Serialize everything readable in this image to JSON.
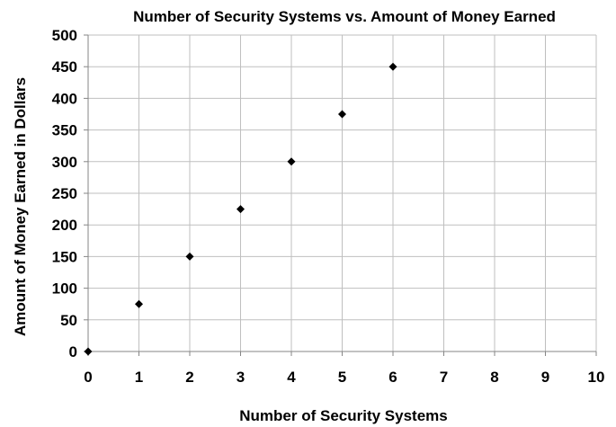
{
  "chart_data": {
    "type": "scatter",
    "title": "Number of Security Systems vs. Amount of Money Earned",
    "xlabel": "Number of Security Systems",
    "ylabel": "Amount of Money Earned in Dollars",
    "xlim": [
      0,
      10
    ],
    "ylim": [
      0,
      500
    ],
    "x_ticks": [
      "0",
      "1",
      "2",
      "3",
      "4",
      "5",
      "6",
      "7",
      "8",
      "9",
      "10"
    ],
    "y_ticks": [
      "0",
      "50",
      "100",
      "150",
      "200",
      "250",
      "300",
      "350",
      "400",
      "450",
      "500"
    ],
    "grid": true,
    "legend": "none",
    "marker": "diamond",
    "marker_color": "#000000",
    "points": [
      {
        "x": 0,
        "y": 0
      },
      {
        "x": 1,
        "y": 75
      },
      {
        "x": 2,
        "y": 150
      },
      {
        "x": 3,
        "y": 225
      },
      {
        "x": 4,
        "y": 300
      },
      {
        "x": 5,
        "y": 375
      },
      {
        "x": 6,
        "y": 450
      }
    ]
  }
}
